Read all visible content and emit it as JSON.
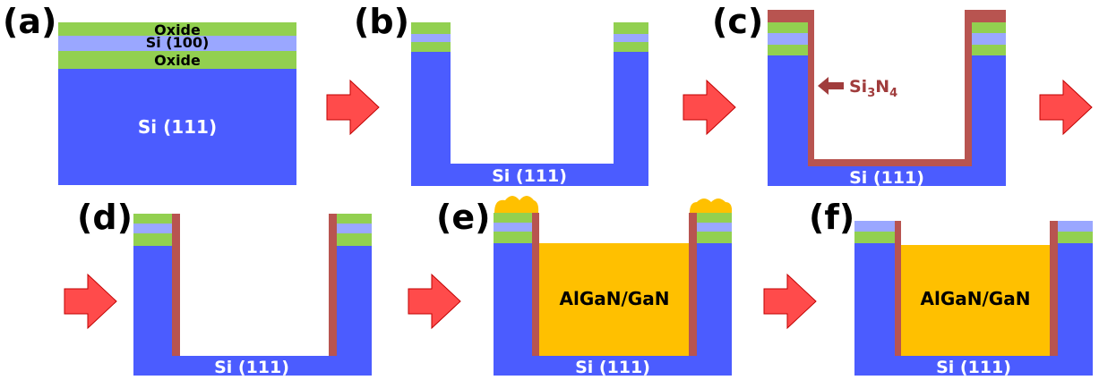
{
  "colors": {
    "si_substrate": "#4b5cff",
    "oxide": "#92d050",
    "si100": "#9aa7ff",
    "nitride": "#b85450",
    "gan": "#ffc000",
    "arrow": "#ff4b4b",
    "arrow_stroke": "#c00000",
    "nitride_text": "#a03c3c"
  },
  "panels": {
    "a": {
      "label": "(a)",
      "oxide_top": "Oxide",
      "si100": "Si (100)",
      "oxide_bottom": "Oxide",
      "substrate": "Si (111)"
    },
    "b": {
      "label": "(b)",
      "substrate": "Si (111)"
    },
    "c": {
      "label": "(c)",
      "substrate": "Si (111)",
      "nitride_prefix": "Si",
      "nitride_sub1": "3",
      "nitride_mid": "N",
      "nitride_sub2": "4"
    },
    "d": {
      "label": "(d)",
      "substrate": "Si (111)"
    },
    "e": {
      "label": "(e)",
      "substrate": "Si (111)",
      "fill": "AlGaN/GaN"
    },
    "f": {
      "label": "(f)",
      "substrate": "Si (111)",
      "fill": "AlGaN/GaN"
    }
  },
  "arrows": [
    "process-arrow-ab",
    "process-arrow-bc",
    "process-arrow-cd",
    "process-arrow-de",
    "process-arrow-ef"
  ]
}
